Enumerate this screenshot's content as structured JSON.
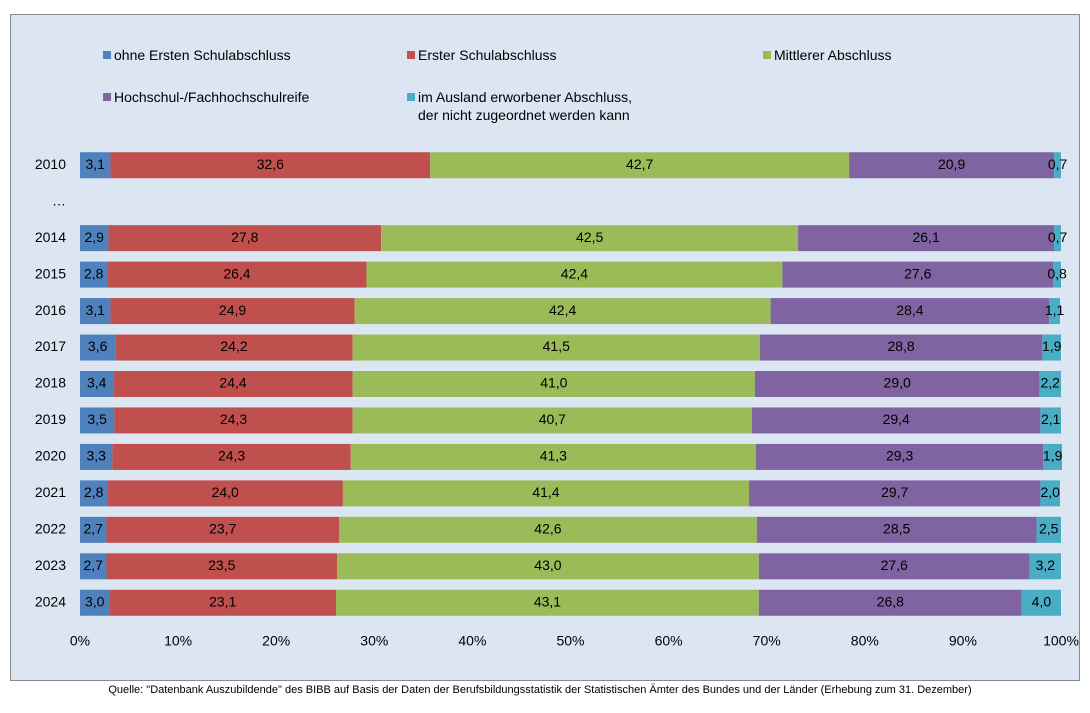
{
  "chart_data": {
    "type": "stacked_barh",
    "categories": [
      "2010",
      "…",
      "2014",
      "2015",
      "2016",
      "2017",
      "2018",
      "2019",
      "2020",
      "2021",
      "2022",
      "2023",
      "2024"
    ],
    "series": [
      {
        "name": "ohne Ersten Schulabschluss",
        "color": "#4f81bd",
        "values": [
          3.1,
          null,
          2.9,
          2.8,
          3.1,
          3.6,
          3.4,
          3.5,
          3.3,
          2.8,
          2.7,
          2.7,
          3.0
        ],
        "value_labels": [
          "3,1",
          null,
          "2,9",
          "2,8",
          "3,1",
          "3,6",
          "3,4",
          "3,5",
          "3,3",
          "2,8",
          "2,7",
          "2,7",
          "3,0"
        ]
      },
      {
        "name": "Erster Schulabschluss",
        "color": "#c0504d",
        "values": [
          32.6,
          null,
          27.8,
          26.4,
          24.9,
          24.2,
          24.4,
          24.3,
          24.3,
          24.0,
          23.7,
          23.5,
          23.1
        ],
        "value_labels": [
          "32,6",
          null,
          "27,8",
          "26,4",
          "24,9",
          "24,2",
          "24,4",
          "24,3",
          "24,3",
          "24,0",
          "23,7",
          "23,5",
          "23,1"
        ]
      },
      {
        "name": "Mittlerer Abschluss",
        "color": "#9bbb59",
        "values": [
          42.7,
          null,
          42.5,
          42.4,
          42.4,
          41.5,
          41.0,
          40.7,
          41.3,
          41.4,
          42.6,
          43.0,
          43.1
        ],
        "value_labels": [
          "42,7",
          null,
          "42,5",
          "42,4",
          "42,4",
          "41,5",
          "41,0",
          "40,7",
          "41,3",
          "41,4",
          "42,6",
          "43,0",
          "43,1"
        ]
      },
      {
        "name": "Hochschul-/Fachhochschulreife",
        "color": "#8064a2",
        "values": [
          20.9,
          null,
          26.1,
          27.6,
          28.4,
          28.8,
          29.0,
          29.4,
          29.3,
          29.7,
          28.5,
          27.6,
          26.8
        ],
        "value_labels": [
          "20,9",
          null,
          "26,1",
          "27,6",
          "28,4",
          "28,8",
          "29,0",
          "29,4",
          "29,3",
          "29,7",
          "28,5",
          "27,6",
          "26,8"
        ]
      },
      {
        "name": "im Ausland erworbener Abschluss,\nder nicht zugeordnet werden kann",
        "color": "#4bacc6",
        "values": [
          0.7,
          null,
          0.7,
          0.8,
          1.1,
          1.9,
          2.2,
          2.1,
          1.9,
          2.0,
          2.5,
          3.2,
          4.0
        ],
        "value_labels": [
          "0,7",
          null,
          "0,7",
          "0,8",
          "1,1",
          "1,9",
          "2,2",
          "2,1",
          "1,9",
          "2,0",
          "2,5",
          "3,2",
          "4,0"
        ]
      }
    ],
    "xlim": [
      0,
      100
    ],
    "xticks": [
      {
        "value": 0,
        "label": "0%"
      },
      {
        "value": 10,
        "label": "10%"
      },
      {
        "value": 20,
        "label": "20%"
      },
      {
        "value": 30,
        "label": "30%"
      },
      {
        "value": 40,
        "label": "40%"
      },
      {
        "value": 50,
        "label": "50%"
      },
      {
        "value": 60,
        "label": "60%"
      },
      {
        "value": 70,
        "label": "70%"
      },
      {
        "value": 80,
        "label": "80%"
      },
      {
        "value": 90,
        "label": "90%"
      },
      {
        "value": 100,
        "label": "100%"
      }
    ],
    "source": "Quelle: \"Datenbank Auszubildende\" des BIBB auf Basis der Daten der Berufsbildungsstatistik der Statistischen Ämter des Bundes und der Länder (Erhebung zum 31. Dezember)"
  }
}
